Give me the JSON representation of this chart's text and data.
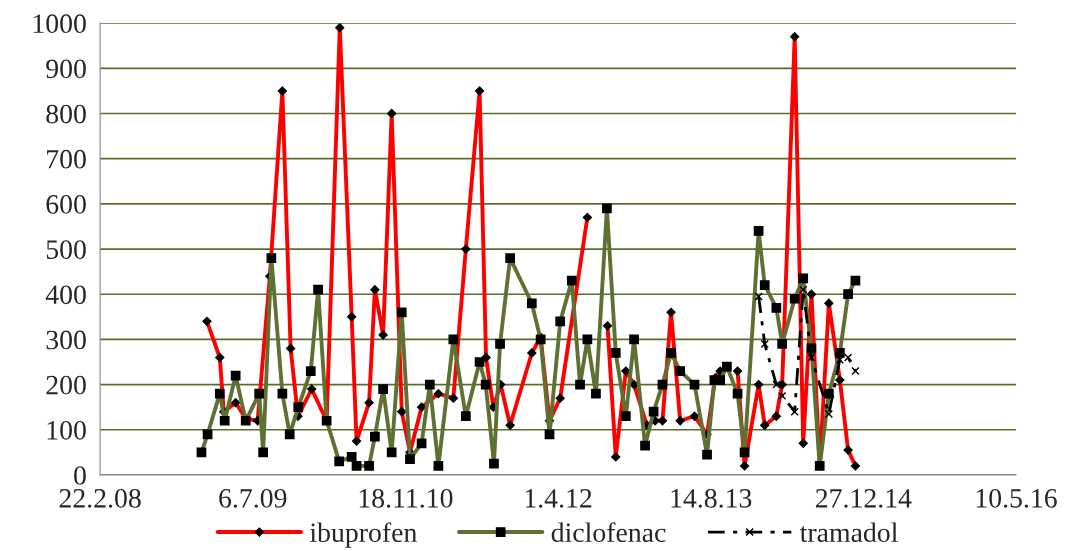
{
  "chart_data": {
    "type": "line",
    "xlim": [
      "2008-02-22",
      "2016-05-10"
    ],
    "xticks": [
      {
        "value": "2008-02-22",
        "label": "22.2.08"
      },
      {
        "value": "2009-07-06",
        "label": "6.7.09"
      },
      {
        "value": "2010-11-18",
        "label": "18.11.10"
      },
      {
        "value": "2012-04-01",
        "label": "1.4.12"
      },
      {
        "value": "2013-08-14",
        "label": "14.8.13"
      },
      {
        "value": "2014-12-27",
        "label": "27.12.14"
      },
      {
        "value": "2016-05-10",
        "label": "10.5.16"
      }
    ],
    "ylim": [
      0,
      1000
    ],
    "yticks": [
      0,
      100,
      200,
      300,
      400,
      500,
      600,
      700,
      800,
      900,
      1000
    ],
    "grid": "y",
    "legend": "bottom",
    "series": [
      {
        "name": "ibuprofen",
        "color": "#ff0000",
        "marker": "diamond",
        "line_style": "solid",
        "x": [
          "2009-02-06",
          "2009-03-20",
          "2009-04-02",
          "2009-05-11",
          "2009-06-13",
          "2009-07-22",
          "2009-08-31",
          "2009-10-11",
          "2009-11-07",
          "2009-12-01",
          "2010-01-15",
          "2010-03-05",
          "2010-04-17",
          "2010-05-26",
          "2010-06-11",
          "2010-07-22",
          "2010-08-10",
          "2010-09-06",
          "2010-10-04",
          "2010-11-06",
          "2010-12-03",
          "2011-01-10",
          "2011-03-06",
          "2011-04-24",
          "2011-06-04",
          "2011-07-19",
          "2011-08-09",
          "2011-09-02",
          "2011-09-26",
          "2011-10-27",
          "2012-01-06",
          "2012-02-04",
          "2012-03-04",
          "2012-04-08",
          "2012-07-06",
          "2012-08-04",
          "2012-09-10",
          "2012-10-07",
          "2012-11-09",
          "2012-12-06",
          "2013-01-17",
          "2013-02-13",
          "2013-03-09",
          "2013-04-06",
          "2013-05-06",
          "2013-06-22",
          "2013-08-02",
          "2013-08-29",
          "2013-09-14",
          "2013-10-06",
          "2013-11-10",
          "2013-12-03",
          "2014-01-18",
          "2014-02-07",
          "2014-03-17",
          "2014-04-05",
          "2014-05-16",
          "2014-06-13",
          "2014-07-10",
          "2014-08-06",
          "2014-09-05",
          "2014-10-11",
          "2014-11-07",
          "2014-12-01"
        ],
        "values": [
          340,
          260,
          140,
          160,
          125,
          120,
          440,
          850,
          280,
          130,
          190,
          120,
          990,
          350,
          75,
          160,
          410,
          310,
          800,
          140,
          50,
          150,
          180,
          170,
          500,
          850,
          260,
          150,
          200,
          110,
          270,
          305,
          120,
          170,
          570,
          null,
          330,
          40,
          230,
          200,
          110,
          120,
          120,
          360,
          120,
          130,
          90,
          215,
          230,
          null,
          230,
          20,
          200,
          110,
          130,
          200,
          970,
          70,
          400,
          20,
          380,
          210,
          55,
          20
        ]
      },
      {
        "name": "diclofenac",
        "color": "#5f7132",
        "marker": "square",
        "line_style": "solid",
        "x": [
          "2009-01-19",
          "2009-02-08",
          "2009-03-20",
          "2009-04-05",
          "2009-05-11",
          "2009-06-13",
          "2009-07-27",
          "2009-08-09",
          "2009-09-05",
          "2009-10-11",
          "2009-11-04",
          "2009-12-02",
          "2010-01-12",
          "2010-02-05",
          "2010-03-05",
          "2010-04-15",
          "2010-05-26",
          "2010-06-11",
          "2010-07-22",
          "2010-08-10",
          "2010-09-06",
          "2010-10-04",
          "2010-11-06",
          "2010-12-03",
          "2011-01-10",
          "2011-02-06",
          "2011-03-06",
          "2011-04-24",
          "2011-06-04",
          "2011-07-19",
          "2011-08-08",
          "2011-09-04",
          "2011-09-24",
          "2011-10-27",
          "2012-01-06",
          "2012-02-04",
          "2012-03-04",
          "2012-04-08",
          "2012-05-16",
          "2012-06-12",
          "2012-07-06",
          "2012-08-03",
          "2012-09-08",
          "2012-10-07",
          "2012-11-09",
          "2012-12-06",
          "2013-01-11",
          "2013-02-08",
          "2013-03-09",
          "2013-04-06",
          "2013-05-06",
          "2013-06-22",
          "2013-08-02",
          "2013-08-26",
          "2013-09-14",
          "2013-10-06",
          "2013-11-10",
          "2013-12-03",
          "2014-01-18",
          "2014-02-07",
          "2014-03-17",
          "2014-04-05",
          "2014-05-16",
          "2014-06-13",
          "2014-07-10",
          "2014-08-06",
          "2014-09-05",
          "2014-10-11",
          "2014-11-07",
          "2014-12-01"
        ],
        "values": [
          50,
          90,
          180,
          120,
          220,
          120,
          180,
          50,
          480,
          180,
          90,
          150,
          230,
          410,
          120,
          30,
          40,
          20,
          20,
          85,
          190,
          50,
          360,
          35,
          70,
          200,
          20,
          300,
          130,
          250,
          200,
          25,
          290,
          480,
          380,
          300,
          90,
          340,
          430,
          200,
          300,
          180,
          590,
          270,
          130,
          300,
          65,
          140,
          200,
          270,
          230,
          200,
          45,
          210,
          210,
          240,
          180,
          50,
          540,
          420,
          370,
          290,
          390,
          435,
          280,
          20,
          180,
          270,
          400,
          430
        ]
      },
      {
        "name": "tramadol",
        "color": "#000000",
        "marker": "cross",
        "line_style": "dashed",
        "x": [
          "2014-01-18",
          "2014-02-07",
          "2014-03-17",
          "2014-04-05",
          "2014-05-16",
          "2014-06-13",
          "2014-07-10",
          "2014-09-05",
          "2014-10-11",
          "2014-11-07",
          "2014-12-01"
        ],
        "values": [
          395,
          290,
          200,
          175,
          140,
          410,
          260,
          135,
          255,
          260,
          230
        ]
      }
    ]
  }
}
